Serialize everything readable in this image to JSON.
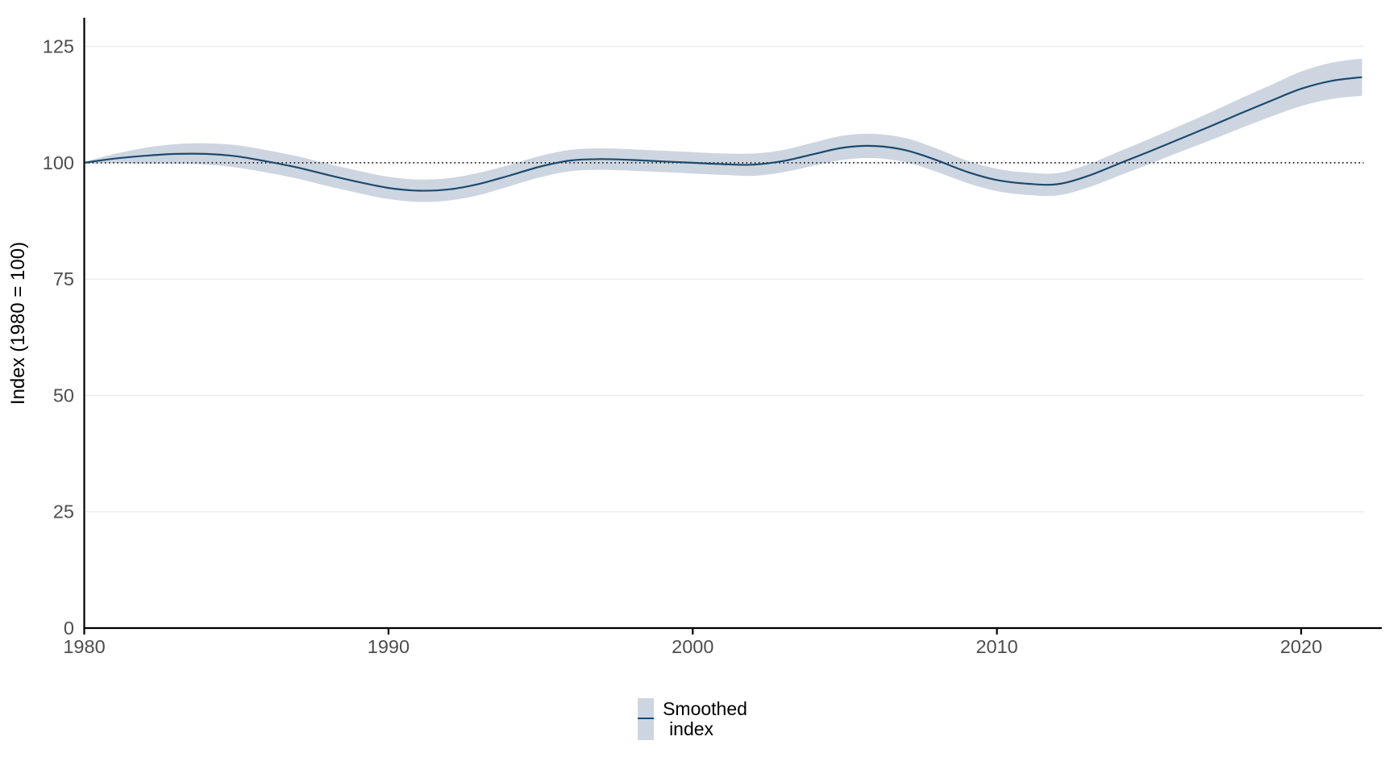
{
  "figure": {
    "background": "#ffffff"
  },
  "colors": {
    "ribbon": "#cdd5e0",
    "line": "#1d4a6e",
    "reference_line": "#1a1a1a",
    "gridline": "#ebebeb",
    "axis_line": "#000000",
    "tick_label": "#4d4d4d",
    "axis_title": "#000000"
  },
  "y_axis": {
    "title": "Index (1980 = 100)",
    "tick_values": [
      0,
      25,
      50,
      75,
      100,
      125
    ],
    "tick_labels": [
      "0",
      "25",
      "50",
      "75",
      "100",
      "125"
    ]
  },
  "x_axis": {
    "tick_values": [
      1980,
      1990,
      2000,
      2010,
      2020
    ],
    "tick_labels": [
      "1980",
      "1990",
      "2000",
      "2010",
      "2020"
    ]
  },
  "legend": {
    "position": "bottom-center",
    "entries": [
      {
        "label_lines": [
          "Smoothed",
          "index"
        ],
        "swatch": "ribbon-with-line"
      }
    ]
  },
  "chart_data": {
    "type": "line",
    "title": "",
    "xlabel": "",
    "ylabel": "Index (1980 = 100)",
    "grid": "horizontal-only",
    "legend_position": "bottom",
    "xlim": [
      1980,
      2022
    ],
    "ylim": [
      0,
      131
    ],
    "reference_line_y": 100,
    "x": [
      1980,
      1981,
      1982,
      1983,
      1984,
      1985,
      1986,
      1987,
      1988,
      1989,
      1990,
      1991,
      1992,
      1993,
      1994,
      1995,
      1996,
      1997,
      1998,
      1999,
      2000,
      2001,
      2002,
      2003,
      2004,
      2005,
      2006,
      2007,
      2008,
      2009,
      2010,
      2011,
      2012,
      2013,
      2014,
      2015,
      2016,
      2017,
      2018,
      2019,
      2020,
      2021,
      2022
    ],
    "series": [
      {
        "name": "Smoothed index",
        "values": [
          100.0,
          100.9,
          101.5,
          101.9,
          101.9,
          101.4,
          100.3,
          99.0,
          97.4,
          95.9,
          94.6,
          94.0,
          94.3,
          95.5,
          97.3,
          99.2,
          100.5,
          100.8,
          100.6,
          100.3,
          100.0,
          99.7,
          99.6,
          100.4,
          101.9,
          103.3,
          103.6,
          102.7,
          100.6,
          98.1,
          96.3,
          95.5,
          95.4,
          97.2,
          99.8,
          102.4,
          105.1,
          107.8,
          110.6,
          113.3,
          115.9,
          117.6,
          118.4
        ]
      }
    ],
    "band": {
      "name": "confidence-ribbon",
      "lower": [
        99.8,
        99.9,
        99.8,
        99.8,
        99.6,
        99.0,
        97.9,
        96.6,
        95.0,
        93.5,
        92.2,
        91.6,
        91.9,
        93.1,
        95.0,
        96.9,
        98.2,
        98.5,
        98.3,
        98.0,
        97.7,
        97.4,
        97.2,
        98.0,
        99.4,
        100.7,
        101.0,
        100.1,
        98.1,
        95.7,
        93.9,
        93.1,
        93.0,
        94.7,
        97.2,
        99.7,
        102.3,
        104.8,
        107.4,
        109.9,
        112.2,
        113.7,
        114.4
      ],
      "upper": [
        100.2,
        101.9,
        103.2,
        104.0,
        104.2,
        103.8,
        102.7,
        101.4,
        99.8,
        98.3,
        97.0,
        96.4,
        96.7,
        97.9,
        99.6,
        101.5,
        102.8,
        103.1,
        102.9,
        102.6,
        102.3,
        102.0,
        102.0,
        102.8,
        104.4,
        105.9,
        106.2,
        105.3,
        103.1,
        100.5,
        98.7,
        97.9,
        97.8,
        99.7,
        102.4,
        105.1,
        107.9,
        110.8,
        113.8,
        116.7,
        119.6,
        121.5,
        122.4
      ]
    }
  }
}
